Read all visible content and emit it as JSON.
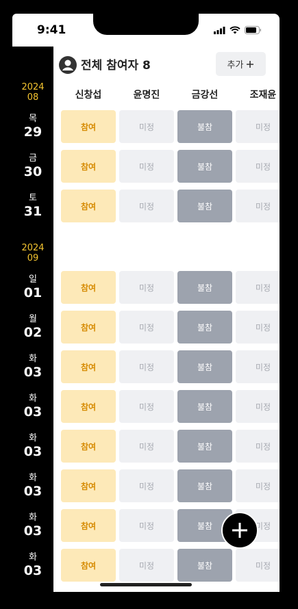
{
  "status": {
    "time": "9:41"
  },
  "header": {
    "title": "전체 참여자 8",
    "add_label": "추가"
  },
  "participants": [
    "신창섭",
    "윤명진",
    "금강선",
    "조재윤"
  ],
  "months": [
    {
      "year": "2024",
      "month": "08"
    },
    {
      "year": "2024",
      "month": "09"
    }
  ],
  "rows": [
    {
      "weekday": "목",
      "day": "29",
      "statuses": [
        "참여",
        "미정",
        "불참",
        "미정"
      ]
    },
    {
      "weekday": "금",
      "day": "30",
      "statuses": [
        "참여",
        "미정",
        "불참",
        "미정"
      ]
    },
    {
      "weekday": "토",
      "day": "31",
      "statuses": [
        "참여",
        "미정",
        "불참",
        "미정"
      ]
    },
    {
      "weekday": "일",
      "day": "01",
      "statuses": [
        "참여",
        "미정",
        "불참",
        "미정"
      ]
    },
    {
      "weekday": "월",
      "day": "02",
      "statuses": [
        "참여",
        "미정",
        "불참",
        "미정"
      ]
    },
    {
      "weekday": "화",
      "day": "03",
      "statuses": [
        "참여",
        "미정",
        "불참",
        "미정"
      ]
    },
    {
      "weekday": "화",
      "day": "03",
      "statuses": [
        "참여",
        "미정",
        "불참",
        "미정"
      ]
    },
    {
      "weekday": "화",
      "day": "03",
      "statuses": [
        "참여",
        "미정",
        "불참",
        "미정"
      ]
    },
    {
      "weekday": "화",
      "day": "03",
      "statuses": [
        "참여",
        "미정",
        "불참",
        "미정"
      ]
    },
    {
      "weekday": "화",
      "day": "03",
      "statuses": [
        "참여",
        "미정",
        "불참",
        "미정"
      ]
    },
    {
      "weekday": "화",
      "day": "03",
      "statuses": [
        "참여",
        "미정",
        "불참",
        "미정"
      ]
    }
  ],
  "colors": {
    "accent": "#f4c430",
    "join_bg": "#fde9b8",
    "join_text": "#d68a00",
    "tbd_bg": "#eff0f3",
    "absent_bg": "#9da3ae"
  },
  "icons": {
    "avatar": "user-avatar-icon",
    "add": "plus-icon",
    "fab": "plus-icon"
  }
}
